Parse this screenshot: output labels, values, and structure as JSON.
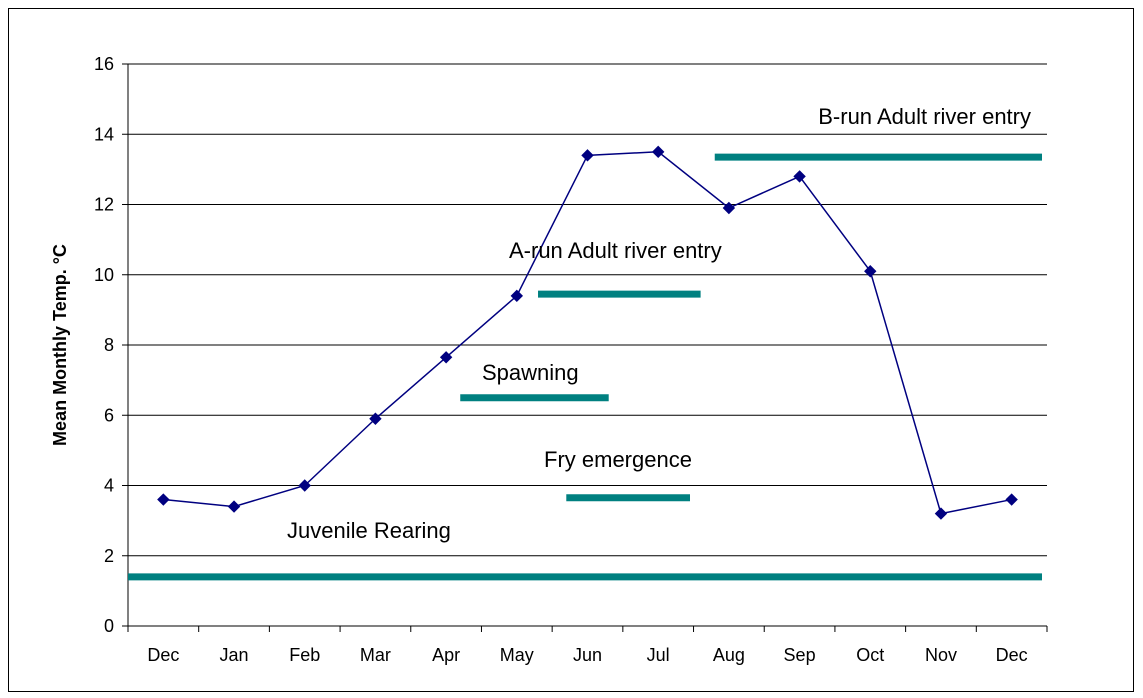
{
  "chart_data": {
    "type": "line",
    "ylabel": "Mean Monthly Temp. °C",
    "xlabel": "",
    "ylim": [
      0,
      16
    ],
    "ytick_step": 2,
    "grid": "horizontal",
    "categories": [
      "Dec",
      "Jan",
      "Feb",
      "Mar",
      "Apr",
      "May",
      "Jun",
      "Jul",
      "Aug",
      "Sep",
      "Oct",
      "Nov",
      "Dec"
    ],
    "series": [
      {
        "values": [
          3.6,
          3.4,
          4.0,
          5.9,
          7.65,
          9.4,
          13.4,
          13.5,
          11.9,
          12.8,
          10.1,
          3.2,
          3.6
        ],
        "color": "#000080",
        "marker": "diamond"
      }
    ],
    "periods": [
      {
        "label": "B-run Adult river entry",
        "y": 13.35,
        "start": 8.3,
        "end": 13.0
      },
      {
        "label": "A-run Adult river entry",
        "y": 9.45,
        "start": 5.8,
        "end": 8.1
      },
      {
        "label": "Spawning",
        "y": 6.5,
        "start": 4.7,
        "end": 6.8
      },
      {
        "label": "Fry emergence",
        "y": 3.65,
        "start": 6.2,
        "end": 7.95
      },
      {
        "label": "Juvenile Rearing",
        "y": 1.4,
        "start": 0.0,
        "end": 13.0
      }
    ],
    "period_color": "#008080"
  }
}
